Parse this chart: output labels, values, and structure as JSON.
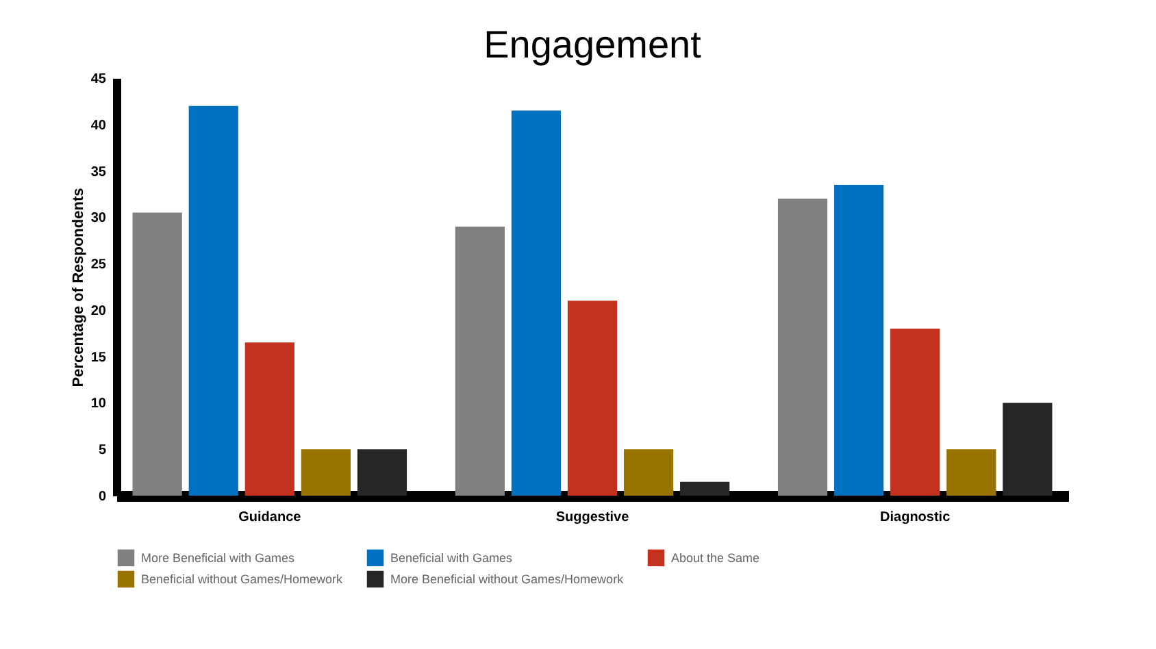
{
  "chart_data": {
    "type": "bar",
    "title": "Engagement",
    "ylabel": "Percentage of Respondents",
    "categories": [
      "Guidance",
      "Suggestive",
      "Diagnostic"
    ],
    "series": [
      {
        "name": "More Beneficial with Games",
        "color": "#808080",
        "values": [
          30.5,
          29,
          32
        ]
      },
      {
        "name": "Beneficial with Games",
        "color": "#0070c0",
        "values": [
          42,
          41.5,
          33.5
        ]
      },
      {
        "name": "About the Same",
        "color": "#c5311f",
        "values": [
          16.5,
          21,
          18
        ]
      },
      {
        "name": "Beneficial without Games/Homework",
        "color": "#997300",
        "values": [
          5,
          5,
          5
        ]
      },
      {
        "name": "More Beneficial without Games/Homework",
        "color": "#262626",
        "values": [
          5,
          1.5,
          10
        ]
      }
    ],
    "ylim": [
      0,
      45
    ],
    "yticks": [
      0,
      5,
      10,
      15,
      20,
      25,
      30,
      35,
      40,
      45
    ],
    "grid": false,
    "legend": "bottom"
  }
}
